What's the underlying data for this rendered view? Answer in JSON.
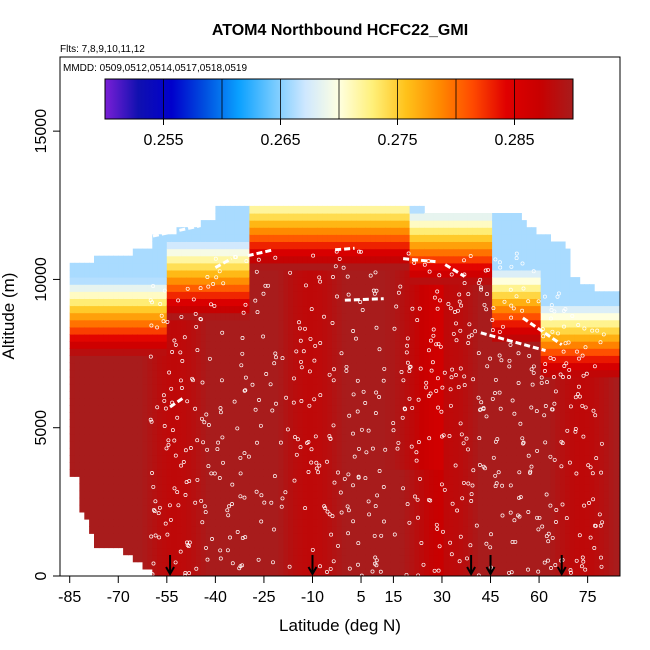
{
  "chart_data": {
    "type": "heatmap",
    "title": "ATOM4 Northbound HCFC22_GMI",
    "flights_note": "Flts: 7,8,9,10,11,12",
    "dates_note": "MMDD: 0509,0512,0514,0517,0518,0519",
    "xlabel": "Latitude (deg N)",
    "ylabel": "Altitude (m)",
    "xlim": [
      -88,
      85
    ],
    "ylim": [
      0,
      17500
    ],
    "x_ticks": [
      -85,
      -70,
      -55,
      -40,
      -25,
      -10,
      5,
      15,
      30,
      45,
      60,
      75
    ],
    "y_ticks": [
      0,
      5000,
      10000,
      15000
    ],
    "colorbar": {
      "ticks": [
        0.255,
        0.265,
        0.275,
        0.285
      ],
      "range": [
        0.25,
        0.29
      ],
      "colors": [
        "#7a1fd6",
        "#1010b0",
        "#0000cc",
        "#0050e0",
        "#0aa0ff",
        "#6fc8ff",
        "#cfe8ff",
        "#ffffe0",
        "#fff07a",
        "#ffc21a",
        "#ff8a00",
        "#ff4a00",
        "#e00000",
        "#c80000",
        "#a81c1c"
      ]
    },
    "data_summary": {
      "upper_troposphere_max_altitude_m": 12300,
      "tropopause_region_value_min": 0.27,
      "lower_troposphere_value_range": [
        0.288,
        0.293
      ]
    },
    "profile_markers_latitude": [
      -54,
      -10,
      39,
      45,
      67
    ]
  }
}
